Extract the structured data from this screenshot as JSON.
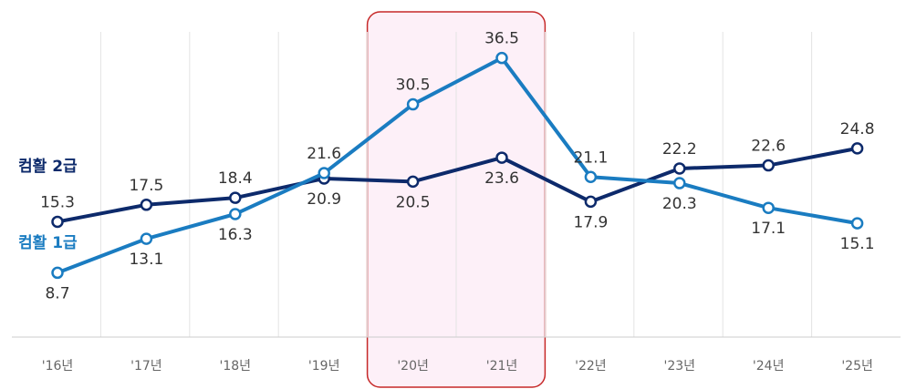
{
  "chart_data": {
    "type": "line",
    "categories": [
      "'16년",
      "'17년",
      "'18년",
      "'19년",
      "'20년",
      "'21년",
      "'22년",
      "'23년",
      "'24년",
      "'25년"
    ],
    "series": [
      {
        "name": "컴활 2급",
        "color": "#0d2a6b",
        "values": [
          15.3,
          17.5,
          18.4,
          20.9,
          20.5,
          23.6,
          17.9,
          22.2,
          22.6,
          24.8
        ],
        "labels": [
          "15.3",
          "17.5",
          "18.4",
          "20.9",
          "20.5",
          "23.6",
          "17.9",
          "22.2",
          "22.6",
          "24.8"
        ]
      },
      {
        "name": "컴활 1급",
        "color": "#1a7cc1",
        "values": [
          8.7,
          13.1,
          16.3,
          21.6,
          30.5,
          36.5,
          21.1,
          20.3,
          17.1,
          15.1
        ],
        "labels": [
          "8.7",
          "13.1",
          "16.3",
          "21.6",
          "30.5",
          "36.5",
          "21.1",
          "20.3",
          "17.1",
          "15.1"
        ]
      }
    ],
    "highlight": {
      "categories": [
        "'20년",
        "'21년"
      ],
      "fill": "#fdf0f8",
      "stroke": "#c62828"
    },
    "grid": "vertical",
    "legend": "inline-left"
  }
}
